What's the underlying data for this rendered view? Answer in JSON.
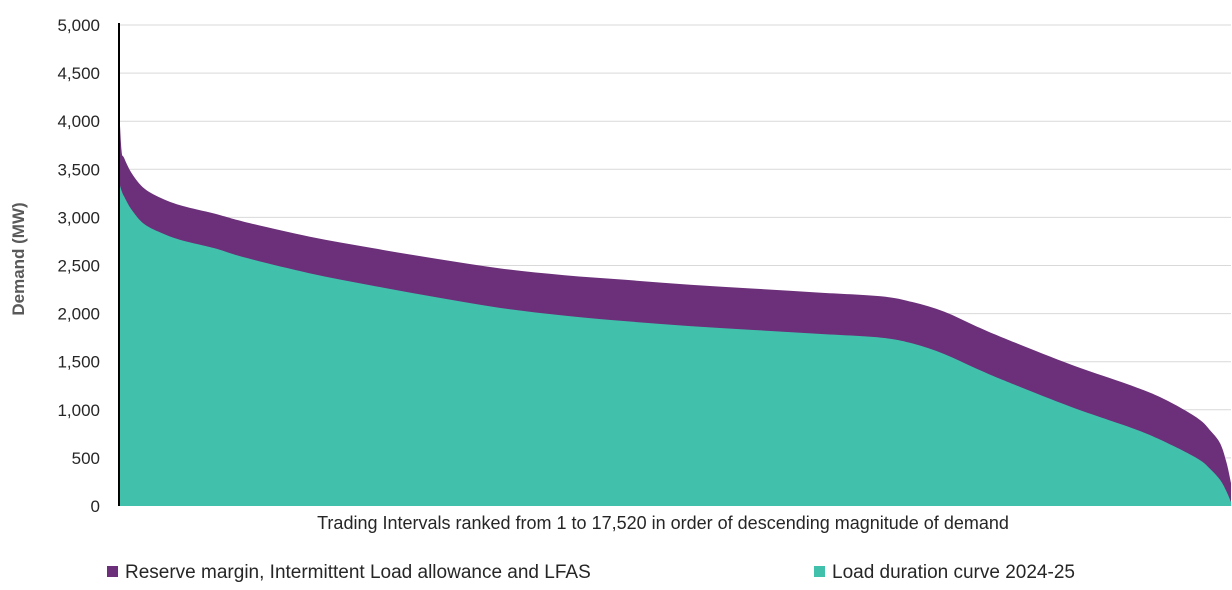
{
  "chart_data": {
    "type": "area",
    "title": "",
    "xlabel": "Trading Intervals ranked from 1 to 17,520 in order of descending magnitude of demand",
    "ylabel": "Demand (MW)",
    "xlim": [
      1,
      17520
    ],
    "ylim": [
      0,
      5000
    ],
    "yticks": [
      0,
      500,
      1000,
      1500,
      2000,
      2500,
      3000,
      3500,
      4000,
      4500,
      5000
    ],
    "ytick_labels": [
      "0",
      "500",
      "1,000",
      "1,500",
      "2,000",
      "2,500",
      "3,000",
      "3,500",
      "4,000",
      "4,500",
      "5,000"
    ],
    "grid": "horizontal",
    "stacked": true,
    "legend": "bottom",
    "x": [
      1,
      40,
      80,
      200,
      400,
      700,
      1000,
      1500,
      2000,
      3000,
      4000,
      5000,
      6000,
      7000,
      8000,
      9000,
      10000,
      11000,
      12000,
      12500,
      13000,
      13500,
      14000,
      15000,
      16000,
      16500,
      17000,
      17200,
      17350,
      17450,
      17520
    ],
    "series": [
      {
        "name": "Load duration curve 2024-25",
        "color": "#41c1ac",
        "values": [
          3370,
          3280,
          3220,
          3080,
          2930,
          2830,
          2760,
          2680,
          2580,
          2420,
          2290,
          2170,
          2060,
          1980,
          1920,
          1870,
          1830,
          1790,
          1750,
          1690,
          1580,
          1430,
          1290,
          1030,
          800,
          660,
          490,
          380,
          270,
          150,
          40
        ]
      },
      {
        "name": "Reserve margin, Intermittent Load allowance and LFAS",
        "color": "#6b3079",
        "values": [
          800,
          420,
          400,
          380,
          370,
          360,
          360,
          360,
          370,
          380,
          390,
          400,
          410,
          420,
          430,
          430,
          430,
          430,
          430,
          430,
          440,
          440,
          440,
          440,
          440,
          440,
          420,
          400,
          380,
          300,
          200
        ]
      }
    ]
  },
  "legend": [
    {
      "label": "Reserve margin, Intermittent Load allowance and LFAS",
      "color": "#6b3079"
    },
    {
      "label": "Load duration curve 2024-25",
      "color": "#41c1ac"
    }
  ]
}
